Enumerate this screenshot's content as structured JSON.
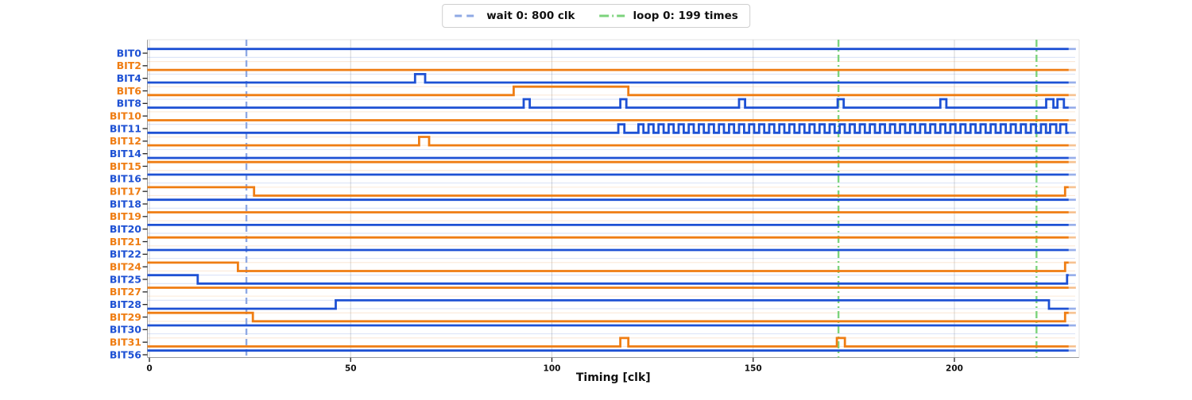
{
  "legend": {
    "items": [
      {
        "name": "wait-marker",
        "label": "wait 0: 800 clk",
        "color": "#8fa9e4",
        "dash": "9 6"
      },
      {
        "name": "loop-marker",
        "label": "loop 0: 199 times",
        "color": "#7cd37c",
        "dash": "12 4 2 4"
      }
    ]
  },
  "chart_data": {
    "type": "line",
    "subtype": "digital-timing-diagram",
    "title": "",
    "xlabel": "Timing [clk]",
    "ylabel": "",
    "x_ticks": [
      0,
      50,
      100,
      150,
      200
    ],
    "x_range": [
      -0.5,
      230.2
    ],
    "trace_end_clk": 228.4,
    "trace_fade_end_clk": 230.2,
    "grid": "vertical-ticks-only",
    "legend_position": "top-center-outside",
    "colors": {
      "blue": "#1e51d4",
      "orange": "#ef7d13",
      "wait_line": "#8fa9e4",
      "loop_line": "#7cd37c",
      "gridline": "#d6d6d6",
      "spine": "#9a9a9a",
      "tick": "#222222",
      "text": "#111111"
    },
    "markers": {
      "wait_lines_clk": [
        24.1
      ],
      "loop_lines_clk": [
        171.2,
        220.4
      ]
    },
    "signals": [
      {
        "name": "BIT0",
        "color": "blue",
        "initial": 1,
        "edges": []
      },
      {
        "name": "BIT2",
        "color": "orange",
        "initial": 0,
        "edges": []
      },
      {
        "name": "BIT4",
        "color": "blue",
        "initial": 0,
        "edges": [
          [
            66,
            1
          ],
          [
            68.5,
            0
          ]
        ]
      },
      {
        "name": "BIT6",
        "color": "orange",
        "initial": 0,
        "edges": [
          [
            90.5,
            1
          ],
          [
            119,
            0
          ]
        ]
      },
      {
        "name": "BIT8",
        "color": "blue",
        "initial": 0,
        "edges": [
          [
            93,
            1
          ],
          [
            94.5,
            0
          ],
          [
            117,
            1
          ],
          [
            118.5,
            0
          ],
          [
            146.5,
            1
          ],
          [
            148,
            0
          ],
          [
            171,
            1
          ],
          [
            172.5,
            0
          ],
          [
            196.5,
            1
          ],
          [
            198,
            0
          ],
          [
            222.8,
            1
          ],
          [
            224.6,
            0
          ],
          [
            225.6,
            1
          ],
          [
            227.2,
            0
          ]
        ]
      },
      {
        "name": "BIT10",
        "color": "orange",
        "initial": 0,
        "edges": []
      },
      {
        "name": "BIT11",
        "color": "blue",
        "initial": 0,
        "edges": [
          [
            116.5,
            1
          ],
          [
            118,
            0
          ],
          [
            223.8,
            1
          ],
          [
            225.3,
            0
          ],
          [
            226.3,
            1
          ],
          [
            227.8,
            0
          ]
        ],
        "burst": {
          "start": 121.5,
          "end": 222.6,
          "period": 2.5
        }
      },
      {
        "name": "BIT12",
        "color": "orange",
        "initial": 0,
        "edges": [
          [
            67,
            1
          ],
          [
            69.5,
            0
          ]
        ]
      },
      {
        "name": "BIT14",
        "color": "blue",
        "initial": 0,
        "edges": []
      },
      {
        "name": "BIT15",
        "color": "orange",
        "initial": 1,
        "edges": []
      },
      {
        "name": "BIT16",
        "color": "blue",
        "initial": 1,
        "edges": []
      },
      {
        "name": "BIT17",
        "color": "orange",
        "initial": 1,
        "edges": [
          [
            26,
            0
          ],
          [
            227.5,
            1
          ]
        ]
      },
      {
        "name": "BIT18",
        "color": "blue",
        "initial": 1,
        "edges": []
      },
      {
        "name": "BIT19",
        "color": "orange",
        "initial": 1,
        "edges": []
      },
      {
        "name": "BIT20",
        "color": "blue",
        "initial": 1,
        "edges": []
      },
      {
        "name": "BIT21",
        "color": "orange",
        "initial": 1,
        "edges": []
      },
      {
        "name": "BIT22",
        "color": "blue",
        "initial": 1,
        "edges": []
      },
      {
        "name": "BIT24",
        "color": "orange",
        "initial": 1,
        "edges": [
          [
            22,
            0
          ],
          [
            227.5,
            1
          ]
        ]
      },
      {
        "name": "BIT25",
        "color": "blue",
        "initial": 1,
        "edges": [
          [
            12,
            0
          ],
          [
            228,
            1
          ]
        ]
      },
      {
        "name": "BIT27",
        "color": "orange",
        "initial": 1,
        "edges": []
      },
      {
        "name": "BIT28",
        "color": "blue",
        "initial": 0,
        "edges": [
          [
            46.3,
            1
          ],
          [
            223.5,
            0
          ]
        ]
      },
      {
        "name": "BIT29",
        "color": "orange",
        "initial": 1,
        "edges": [
          [
            25.7,
            0
          ],
          [
            227.5,
            1
          ]
        ]
      },
      {
        "name": "BIT30",
        "color": "blue",
        "initial": 1,
        "edges": []
      },
      {
        "name": "BIT31",
        "color": "orange",
        "initial": 0,
        "edges": [
          [
            117,
            1
          ],
          [
            119,
            0
          ],
          [
            170.8,
            1
          ],
          [
            172.8,
            0
          ]
        ]
      },
      {
        "name": "BIT56",
        "color": "blue",
        "initial": 1,
        "edges": []
      }
    ]
  }
}
